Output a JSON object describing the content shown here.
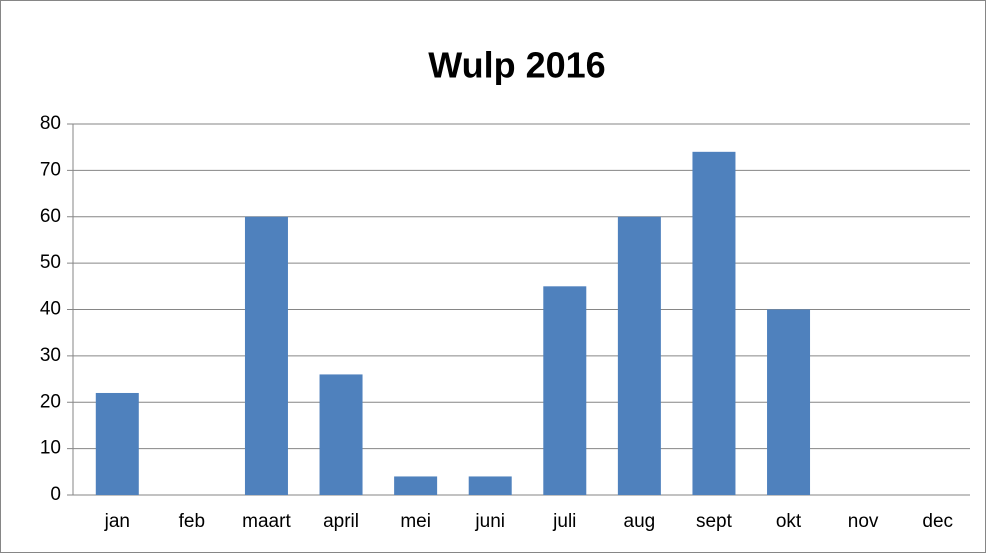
{
  "chart_data": {
    "type": "bar",
    "title": "Wulp 2016",
    "categories": [
      "jan",
      "feb",
      "maart",
      "april",
      "mei",
      "juni",
      "juli",
      "aug",
      "sept",
      "okt",
      "nov",
      "dec"
    ],
    "values": [
      22,
      0,
      60,
      26,
      4,
      4,
      45,
      60,
      74,
      40,
      0,
      0
    ],
    "color": "#4f81bd",
    "ylim": [
      0,
      80
    ],
    "yticks": [
      0,
      10,
      20,
      30,
      40,
      50,
      60,
      70,
      80
    ],
    "grid": true
  }
}
